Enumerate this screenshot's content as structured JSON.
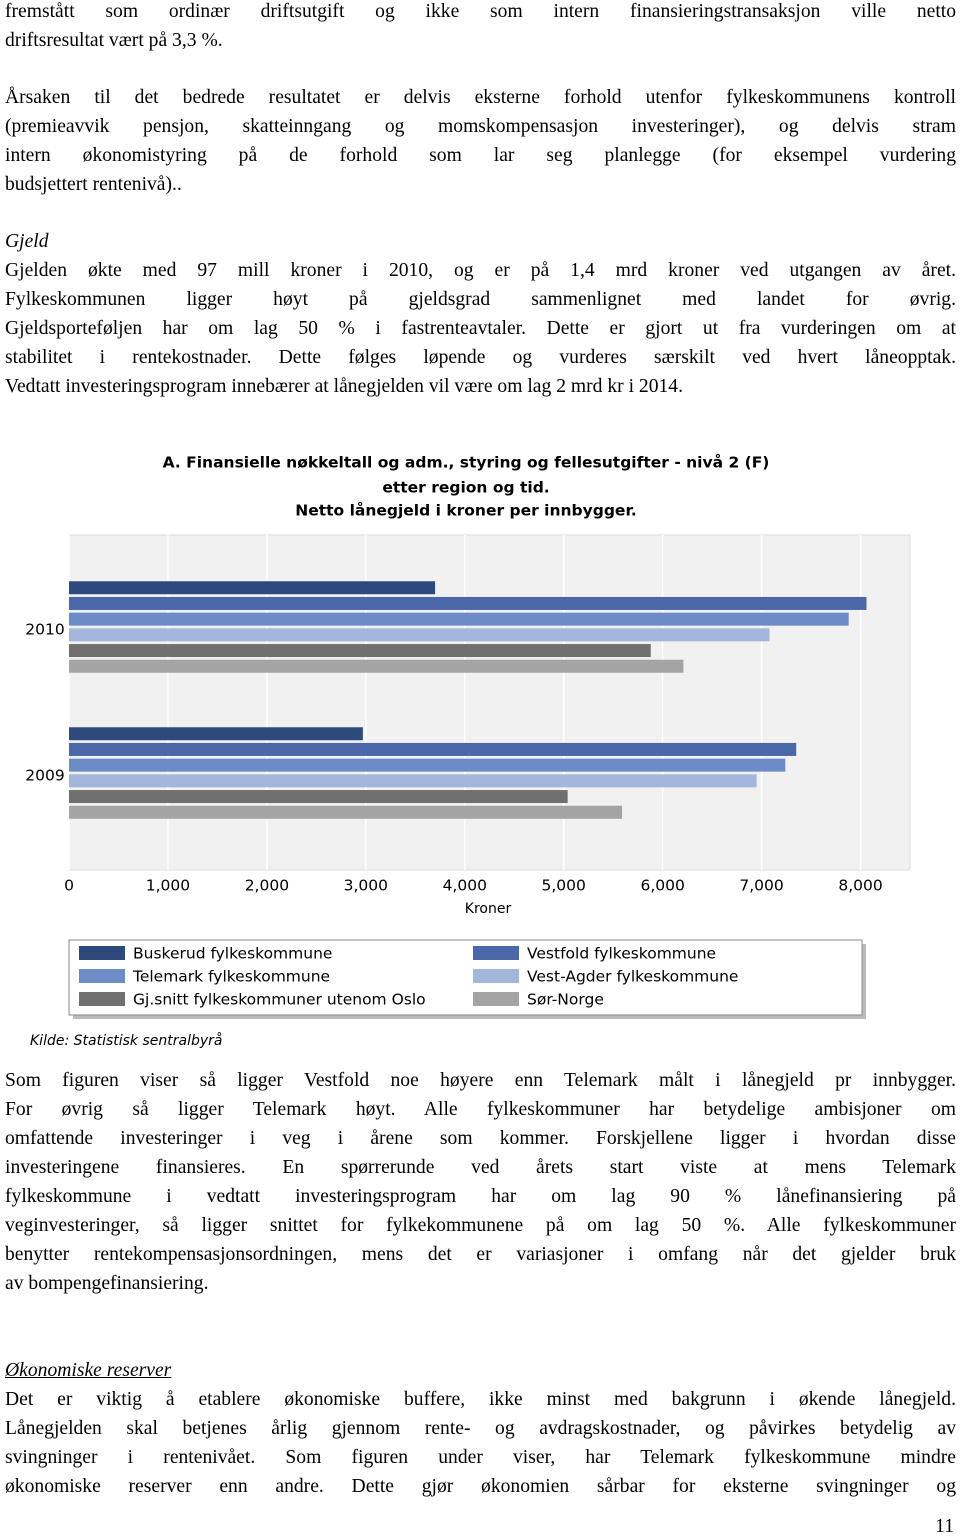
{
  "paragraphs": [
    [
      "fremstått som ordinær driftsutgift og ikke som intern finansieringstransaksjon ville netto",
      "driftsresultat vært på 3,3 %."
    ],
    [
      "Årsaken til det bedrede resultatet er delvis eksterne forhold utenfor fylkeskommunens kontroll",
      "(premieavvik pensjon, skatteinngang og momskompensasjon investeringer), og delvis stram",
      "intern økonomistyring på de forhold som lar seg planlegge (for eksempel vurdering",
      "budsjettert rentenivå).."
    ],
    [
      "Gjelden økte med 97 mill kroner i 2010, og er på 1,4 mrd kroner ved utgangen av året.",
      "Fylkeskommunen ligger høyt på gjeldsgrad sammenlignet med landet for øvrig.",
      "Gjeldsporteføljen har om lag 50 % i fastrenteavtaler. Dette er gjort ut fra vurderingen om at",
      "stabilitet i rentekostnader. Dette følges løpende og vurderes særskilt ved hvert låneopptak.",
      "Vedtatt investeringsprogram innebærer at lånegjelden vil være om lag 2 mrd kr i 2014."
    ],
    [
      "Som figuren viser så ligger Vestfold noe høyere enn Telemark målt i lånegjeld pr innbygger.",
      "For øvrig så ligger Telemark høyt. Alle fylkeskommuner har betydelige ambisjoner om",
      "omfattende investeringer i veg i årene som kommer. Forskjellene ligger i hvordan disse",
      "investeringene finansieres. En spørrerunde ved årets start viste at mens Telemark",
      "fylkeskommune i vedtatt investeringsprogram har om lag 90 % lånefinansiering på",
      "veginvesteringer, så ligger snittet for fylkekommunene på om lag 50 %. Alle fylkeskommuner",
      "benytter rentekompensasjonsordningen, mens det er variasjoner i omfang når det gjelder bruk",
      "av bompengefinansiering."
    ],
    [
      "Det er viktig å etablere økonomiske buffere, ikke minst med bakgrunn i økende lånegjeld.",
      "Lånegjelden skal betjenes årlig gjennom rente- og avdragskostnader, og påvirkes betydelig av",
      "svingninger i rentenivået. Som figuren under viser, har Telemark fylkeskommune mindre",
      "økonomiske reserver enn andre. Dette gjør økonomien sårbar for eksterne svingninger og"
    ]
  ],
  "headings": [
    "Gjeld",
    "Økonomiske reserver"
  ],
  "page_number": "11",
  "chart_data": {
    "type": "hbar",
    "title": [
      "A. Finansielle nøkkeltall og adm., styring og fellesutgifter - nivå 2 (F)",
      "etter region og tid.",
      "Netto lånegjeld i kroner per innbygger."
    ],
    "x_label": "Kroner",
    "source": "Kilde: Statistisk sentralbyrå",
    "categories": [
      "2010",
      "2009"
    ],
    "series": [
      {
        "name": "Buskerud fylkeskommune",
        "color": "#2e4a7c",
        "values": [
          3700,
          2970
        ]
      },
      {
        "name": "Vestfold fylkeskommune",
        "color": "#4a67a9",
        "values": [
          8060,
          7350
        ]
      },
      {
        "name": "Telemark fylkeskommune",
        "color": "#6b8cc6",
        "values": [
          7880,
          7240
        ]
      },
      {
        "name": "Vest-Agder fylkeskommune",
        "color": "#a3b6dc",
        "values": [
          7080,
          6950
        ]
      },
      {
        "name": "Gj.snitt fylkeskommuner utenom Oslo",
        "color": "#707070",
        "values": [
          5880,
          5040
        ]
      },
      {
        "name": "Sør-Norge",
        "color": "#a4a4a4",
        "values": [
          6210,
          5590
        ]
      }
    ],
    "xlim": [
      0,
      8500
    ],
    "xticks": [
      0,
      {
        "value": 1000,
        "label": "1,000"
      },
      {
        "value": 2000,
        "label": "2,000"
      },
      {
        "value": 3000,
        "label": "3,000"
      },
      {
        "value": 4000,
        "label": "4,000"
      },
      {
        "value": 5000,
        "label": "5,000"
      },
      {
        "value": 6000,
        "label": "6,000"
      },
      {
        "value": 7000,
        "label": "7,000"
      },
      {
        "value": 8000,
        "label": "8,000"
      }
    ],
    "grid": true
  }
}
